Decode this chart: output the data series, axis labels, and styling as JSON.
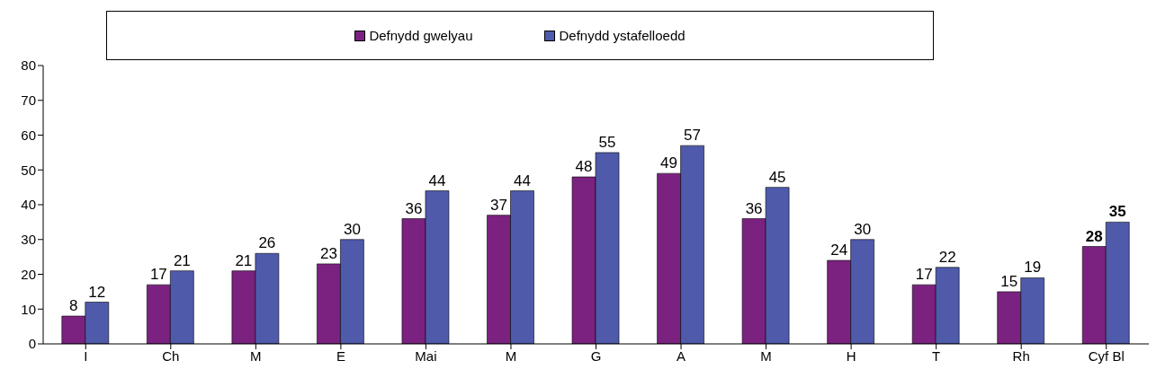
{
  "chart_data": {
    "type": "bar",
    "categories": [
      "I",
      "Ch",
      "M",
      "E",
      "Mai",
      "M",
      "G",
      "A",
      "M",
      "H",
      "T",
      "Rh",
      "Cyf Bl"
    ],
    "series": [
      {
        "name": "Defnydd gwelyau",
        "color": "#7b2281",
        "values": [
          8,
          17,
          21,
          23,
          36,
          37,
          48,
          49,
          36,
          24,
          17,
          15,
          28
        ]
      },
      {
        "name": "Defnydd ystafelloedd",
        "color": "#4f5aab",
        "values": [
          12,
          21,
          26,
          30,
          44,
          44,
          55,
          57,
          45,
          30,
          22,
          19,
          35
        ]
      }
    ],
    "ylim": [
      0,
      80
    ],
    "yticks": [
      0,
      10,
      20,
      30,
      40,
      50,
      60,
      70,
      80
    ],
    "legend": "top",
    "data_labels": true
  }
}
